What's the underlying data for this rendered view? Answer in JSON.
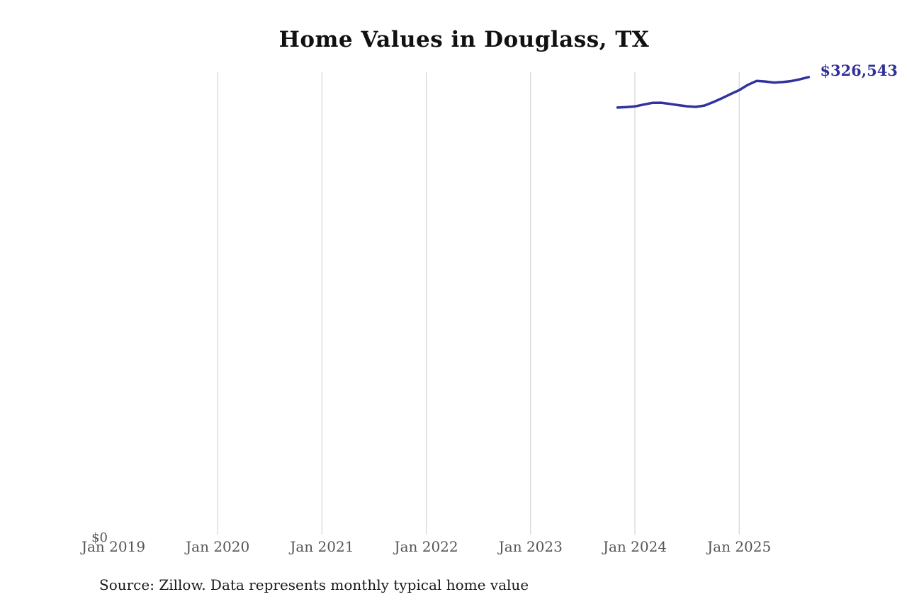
{
  "page": {
    "title": "Home Values in Douglass, TX",
    "source_note": "Source: Zillow. Data represents monthly typical home value"
  },
  "colors": {
    "background": "#ffffff",
    "line": "#32329e",
    "annotation": "#31319b",
    "gridline": "#cccccc",
    "axis_label": "#555555",
    "title": "#111111",
    "source": "#1a1a1a"
  },
  "chart_data": {
    "type": "line",
    "title": "Home Values in Douglass, TX",
    "series_name": "Monthly typical home value",
    "x": [
      "Nov 2023",
      "Dec 2023",
      "Jan 2024",
      "Feb 2024",
      "Mar 2024",
      "Apr 2024",
      "May 2024",
      "Jun 2024",
      "Jul 2024",
      "Aug 2024",
      "Sep 2024",
      "Oct 2024",
      "Nov 2024",
      "Dec 2024",
      "Jan 2025",
      "Feb 2025",
      "Mar 2025",
      "Apr 2025",
      "May 2025",
      "Jun 2025",
      "Jul 2025",
      "Aug 2025",
      "Sep 2025"
    ],
    "values": [
      304800,
      305100,
      305600,
      306900,
      308100,
      308200,
      307400,
      306500,
      305700,
      305300,
      306200,
      308600,
      311400,
      314400,
      317200,
      321000,
      323800,
      323400,
      322600,
      323000,
      323700,
      325000,
      326543
    ],
    "end_label": "$326,543",
    "x_ticks": [
      {
        "label": "Jan 2019",
        "gridline": false
      },
      {
        "label": "Jan 2020",
        "gridline": true
      },
      {
        "label": "Jan 2021",
        "gridline": true
      },
      {
        "label": "Jan 2022",
        "gridline": true
      },
      {
        "label": "Jan 2023",
        "gridline": true
      },
      {
        "label": "Jan 2024",
        "gridline": true
      },
      {
        "label": "Jan 2025",
        "gridline": true
      }
    ],
    "y_ticks": [
      {
        "label": "$0",
        "value": 0
      }
    ],
    "ylim": [
      0,
      330000
    ],
    "xlabel": "",
    "ylabel": "",
    "legend": "none",
    "grid": "vertical-only",
    "source": "Source: Zillow. Data represents monthly typical home value"
  }
}
